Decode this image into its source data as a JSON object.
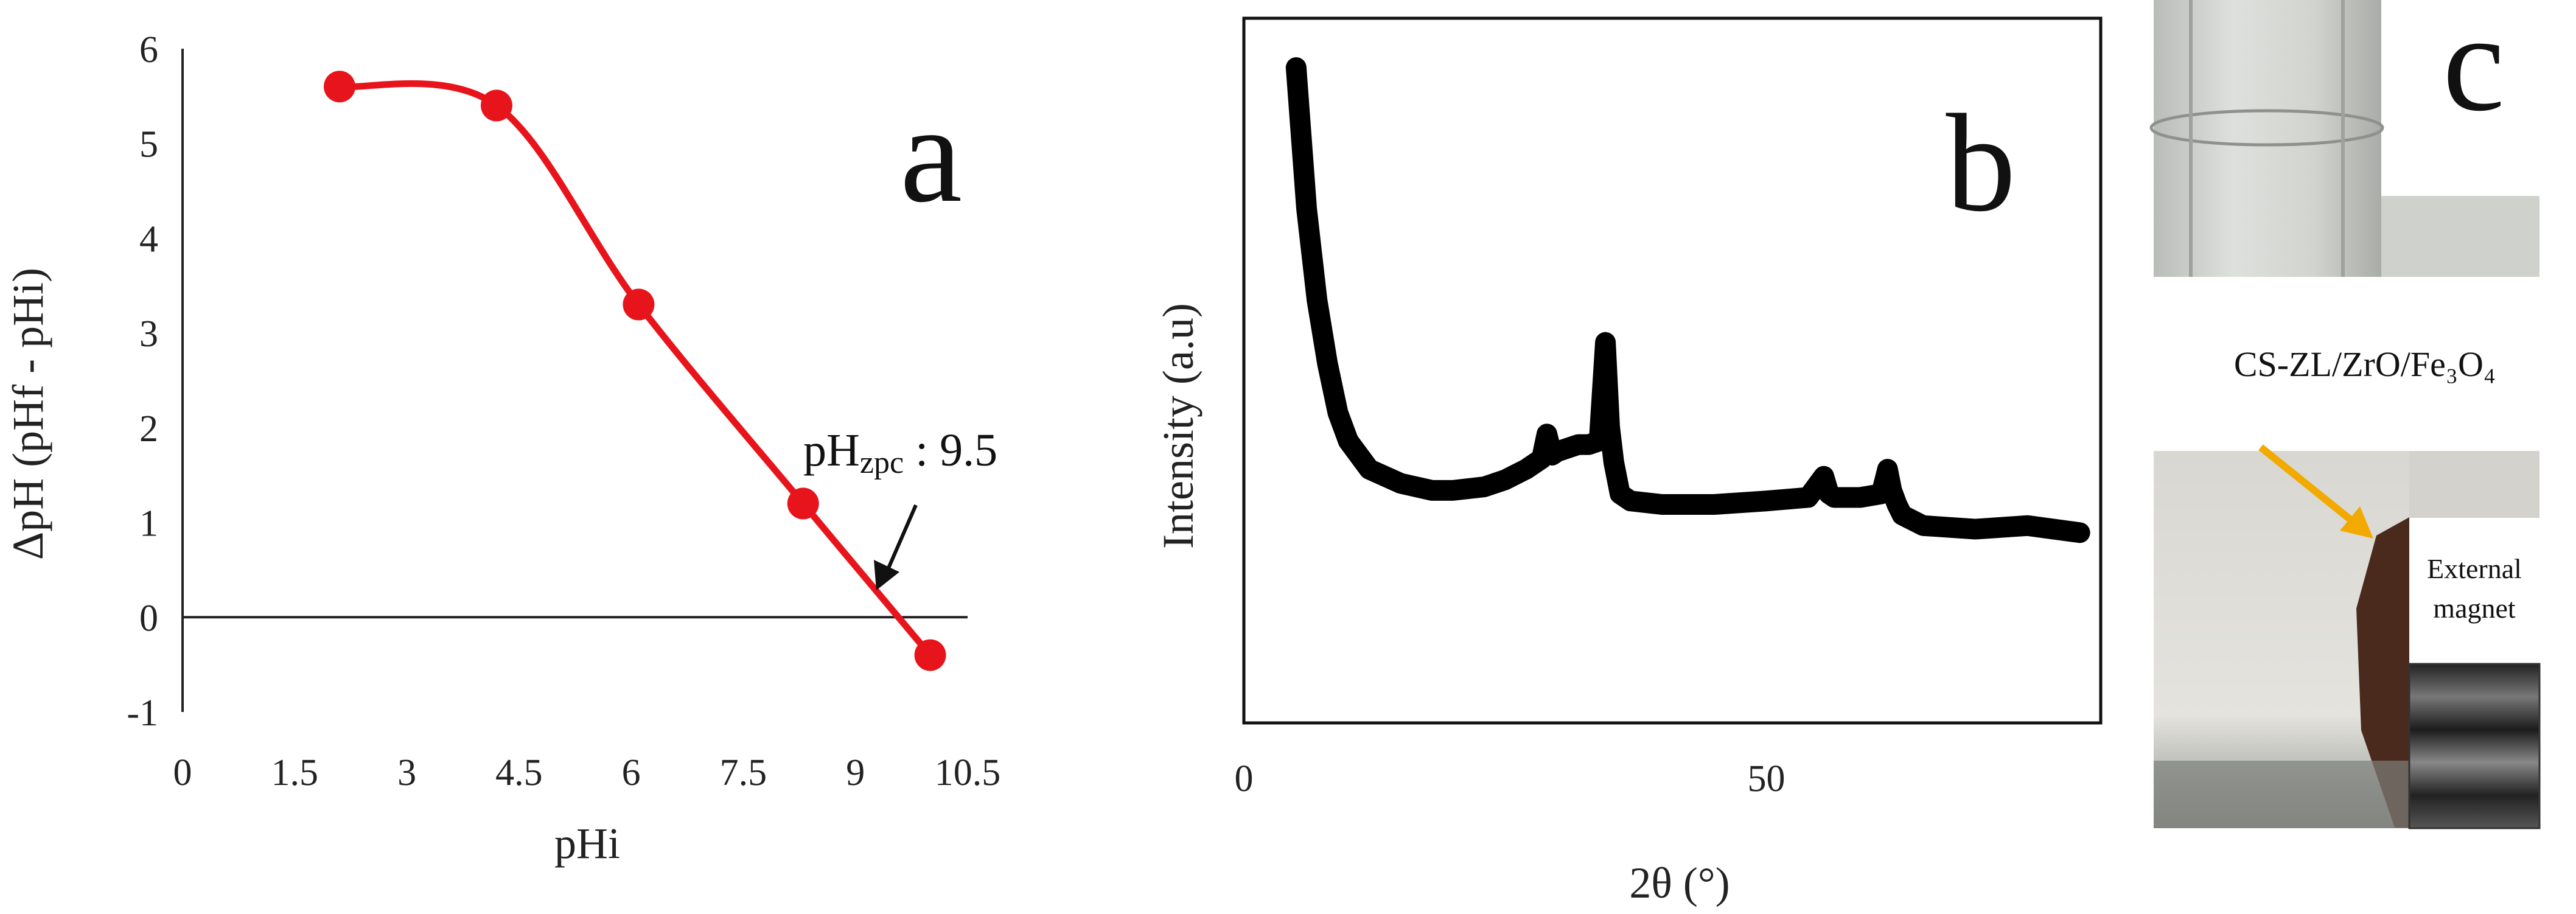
{
  "chart_data": [
    {
      "panel": "a",
      "type": "line",
      "xlabel": "pHi",
      "ylabel": "ΔpH (pHf - pHi)",
      "x_ticks": [
        "0",
        "1.5",
        "3",
        "4.5",
        "6",
        "7.5",
        "9",
        "10.5"
      ],
      "y_ticks": [
        "6",
        "5",
        "4",
        "3",
        "2",
        "1",
        "0",
        "-1"
      ],
      "xlim": [
        0,
        10.5
      ],
      "ylim": [
        -1,
        6
      ],
      "color": "#e8141b",
      "series": [
        {
          "x": [
            2.1,
            4.2,
            6.1,
            8.3,
            10.0
          ],
          "y": [
            5.6,
            5.4,
            3.3,
            1.2,
            -0.4
          ]
        }
      ],
      "annotation": {
        "prefix": "pH",
        "subscript": "zpc",
        "suffix": " : 9.5"
      }
    },
    {
      "panel": "b",
      "type": "line",
      "xlabel": "2θ (°)",
      "ylabel": "Intensity (a.u)",
      "x_ticks": [
        "0",
        "50"
      ],
      "xlim": [
        0,
        82
      ],
      "ylim": [
        0,
        10
      ],
      "color": "#000000",
      "series": [
        {
          "x": [
            5,
            5.5,
            6,
            7,
            8,
            9,
            10,
            12,
            15,
            18,
            20,
            23,
            25,
            27,
            28.5,
            29,
            29.5,
            30,
            31,
            32,
            33,
            34,
            34.6,
            35,
            35.4,
            36,
            37,
            40,
            45,
            50,
            54,
            55.5,
            56,
            56.5,
            57,
            59,
            61,
            61.6,
            62,
            62.5,
            63,
            65,
            70,
            75,
            80
          ],
          "y": [
            9.3,
            8.3,
            7.3,
            6.0,
            5.1,
            4.4,
            4.0,
            3.6,
            3.4,
            3.3,
            3.3,
            3.35,
            3.45,
            3.6,
            3.75,
            4.1,
            3.8,
            3.85,
            3.9,
            3.95,
            3.95,
            4.0,
            5.4,
            4.2,
            3.7,
            3.25,
            3.15,
            3.1,
            3.1,
            3.15,
            3.2,
            3.5,
            3.25,
            3.2,
            3.2,
            3.2,
            3.25,
            3.6,
            3.3,
            3.1,
            2.95,
            2.8,
            2.75,
            2.8,
            2.7
          ]
        }
      ]
    }
  ],
  "labels": {
    "panel_a": "a",
    "panel_b": "b",
    "panel_c": "c"
  },
  "photo": {
    "material_label": "CS-ZL/ZrO/Fe₃O₄",
    "magnet_line1": "External",
    "magnet_line2": "magnet",
    "arrow_color": "#f2a900"
  }
}
